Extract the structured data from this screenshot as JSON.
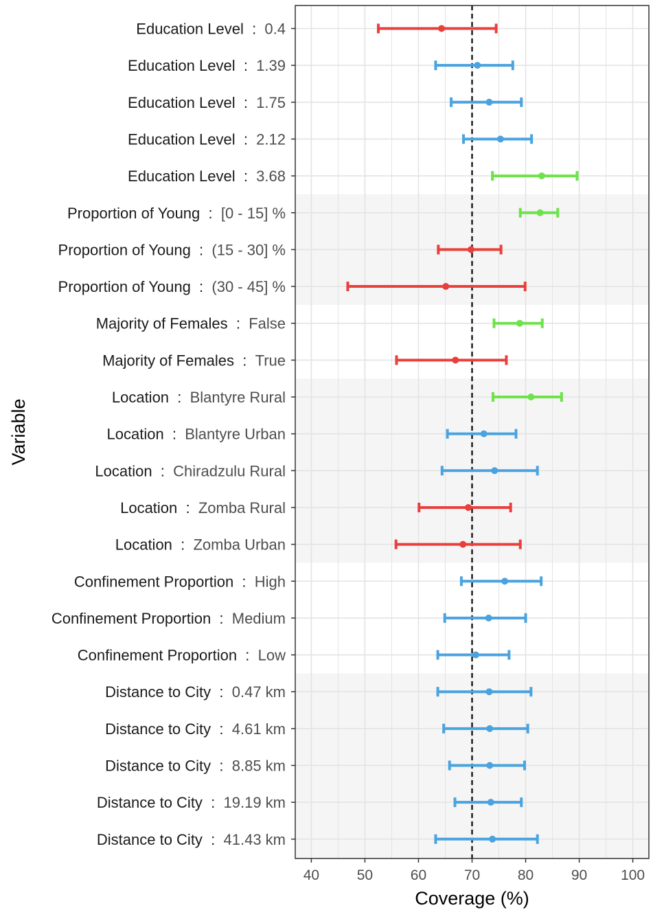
{
  "chart_data": {
    "type": "errorbar",
    "xlabel": "Coverage (%)",
    "ylabel": "Variable",
    "xlim": [
      37,
      103
    ],
    "x_ticks": [
      40,
      50,
      60,
      70,
      80,
      90,
      100
    ],
    "reference_line": 70,
    "grid": true,
    "legend": "none",
    "colors": {
      "low": "#e8403c",
      "mid": "#4aa3df",
      "high": "#6ee24a",
      "band": "#f5f5f5",
      "grid": "#e3e3e3",
      "panel_border": "#333333"
    },
    "separator": ":",
    "groups": [
      {
        "variable": "Education Level",
        "shaded": false,
        "rows": [
          {
            "level": "0.4",
            "estimate": 64.3,
            "lower": 52.5,
            "upper": 74.5,
            "status": "low"
          },
          {
            "level": "1.39",
            "estimate": 71.0,
            "lower": 63.2,
            "upper": 77.6,
            "status": "mid"
          },
          {
            "level": "1.75",
            "estimate": 73.2,
            "lower": 66.1,
            "upper": 79.2,
            "status": "mid"
          },
          {
            "level": "2.12",
            "estimate": 75.3,
            "lower": 68.4,
            "upper": 81.1,
            "status": "mid"
          },
          {
            "level": "3.68",
            "estimate": 83.0,
            "lower": 73.8,
            "upper": 89.6,
            "status": "high"
          }
        ]
      },
      {
        "variable": "Proportion of Young",
        "shaded": true,
        "rows": [
          {
            "level": "[0 - 15] %",
            "estimate": 82.7,
            "lower": 79.0,
            "upper": 86.0,
            "status": "high"
          },
          {
            "level": "(15 - 30] %",
            "estimate": 69.8,
            "lower": 63.7,
            "upper": 75.4,
            "status": "low"
          },
          {
            "level": "(30 - 45] %",
            "estimate": 65.1,
            "lower": 46.8,
            "upper": 79.9,
            "status": "low"
          }
        ]
      },
      {
        "variable": "Majority of Females",
        "shaded": false,
        "rows": [
          {
            "level": "False",
            "estimate": 78.9,
            "lower": 74.1,
            "upper": 83.1,
            "status": "high"
          },
          {
            "level": "True",
            "estimate": 66.9,
            "lower": 55.9,
            "upper": 76.4,
            "status": "low"
          }
        ]
      },
      {
        "variable": "Location",
        "shaded": true,
        "rows": [
          {
            "level": "Blantyre Rural",
            "estimate": 81.0,
            "lower": 73.9,
            "upper": 86.7,
            "status": "high"
          },
          {
            "level": "Blantyre Urban",
            "estimate": 72.2,
            "lower": 65.4,
            "upper": 78.2,
            "status": "mid"
          },
          {
            "level": "Chiradzulu Rural",
            "estimate": 74.2,
            "lower": 64.4,
            "upper": 82.2,
            "status": "mid"
          },
          {
            "level": "Zomba Rural",
            "estimate": 69.3,
            "lower": 60.1,
            "upper": 77.2,
            "status": "low"
          },
          {
            "level": "Zomba Urban",
            "estimate": 68.3,
            "lower": 55.8,
            "upper": 79.0,
            "status": "low"
          }
        ]
      },
      {
        "variable": "Confinement Proportion",
        "shaded": false,
        "rows": [
          {
            "level": "High",
            "estimate": 76.1,
            "lower": 68.0,
            "upper": 82.9,
            "status": "mid"
          },
          {
            "level": "Medium",
            "estimate": 73.1,
            "lower": 64.9,
            "upper": 80.0,
            "status": "mid"
          },
          {
            "level": "Low",
            "estimate": 70.7,
            "lower": 63.6,
            "upper": 76.9,
            "status": "mid"
          }
        ]
      },
      {
        "variable": "Distance to City",
        "shaded": true,
        "rows": [
          {
            "level": "0.47 km",
            "estimate": 73.2,
            "lower": 63.6,
            "upper": 81.0,
            "status": "mid"
          },
          {
            "level": "4.61 km",
            "estimate": 73.3,
            "lower": 64.7,
            "upper": 80.4,
            "status": "mid"
          },
          {
            "level": "8.85 km",
            "estimate": 73.3,
            "lower": 65.8,
            "upper": 79.8,
            "status": "mid"
          },
          {
            "level": "19.19 km",
            "estimate": 73.5,
            "lower": 66.8,
            "upper": 79.2,
            "status": "mid"
          },
          {
            "level": "41.43 km",
            "estimate": 73.8,
            "lower": 63.2,
            "upper": 82.2,
            "status": "mid"
          }
        ]
      }
    ]
  }
}
